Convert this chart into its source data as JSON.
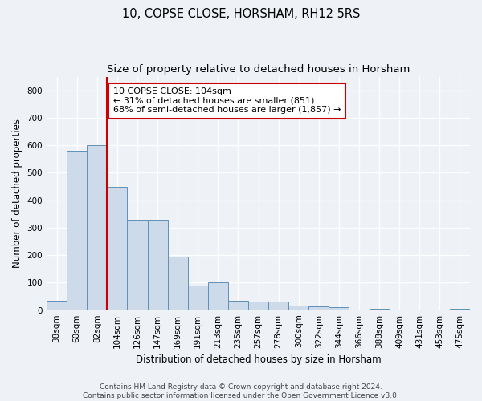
{
  "title": "10, COPSE CLOSE, HORSHAM, RH12 5RS",
  "subtitle": "Size of property relative to detached houses in Horsham",
  "xlabel": "Distribution of detached houses by size in Horsham",
  "ylabel": "Number of detached properties",
  "categories": [
    "38sqm",
    "60sqm",
    "82sqm",
    "104sqm",
    "126sqm",
    "147sqm",
    "169sqm",
    "191sqm",
    "213sqm",
    "235sqm",
    "257sqm",
    "278sqm",
    "300sqm",
    "322sqm",
    "344sqm",
    "366sqm",
    "388sqm",
    "409sqm",
    "431sqm",
    "453sqm",
    "475sqm"
  ],
  "values": [
    35,
    580,
    600,
    450,
    328,
    328,
    195,
    90,
    100,
    35,
    32,
    30,
    17,
    14,
    11,
    0,
    5,
    0,
    0,
    0,
    6
  ],
  "bar_color": "#ccdaea",
  "bar_edgecolor": "#6090b8",
  "property_line_index": 3,
  "property_line_color": "#cc0000",
  "annotation_text": "10 COPSE CLOSE: 104sqm\n← 31% of detached houses are smaller (851)\n68% of semi-detached houses are larger (1,857) →",
  "annotation_box_edgecolor": "#cc0000",
  "annotation_box_facecolor": "#ffffff",
  "ylim": [
    0,
    850
  ],
  "yticks": [
    0,
    100,
    200,
    300,
    400,
    500,
    600,
    700,
    800
  ],
  "footer": "Contains HM Land Registry data © Crown copyright and database right 2024.\nContains public sector information licensed under the Open Government Licence v3.0.",
  "background_color": "#eef2f7",
  "plot_background": "#eef2f7",
  "grid_color": "#ffffff",
  "title_fontsize": 10.5,
  "subtitle_fontsize": 9.5,
  "axis_label_fontsize": 8.5,
  "tick_fontsize": 7.5,
  "annotation_fontsize": 8,
  "footer_fontsize": 6.5
}
